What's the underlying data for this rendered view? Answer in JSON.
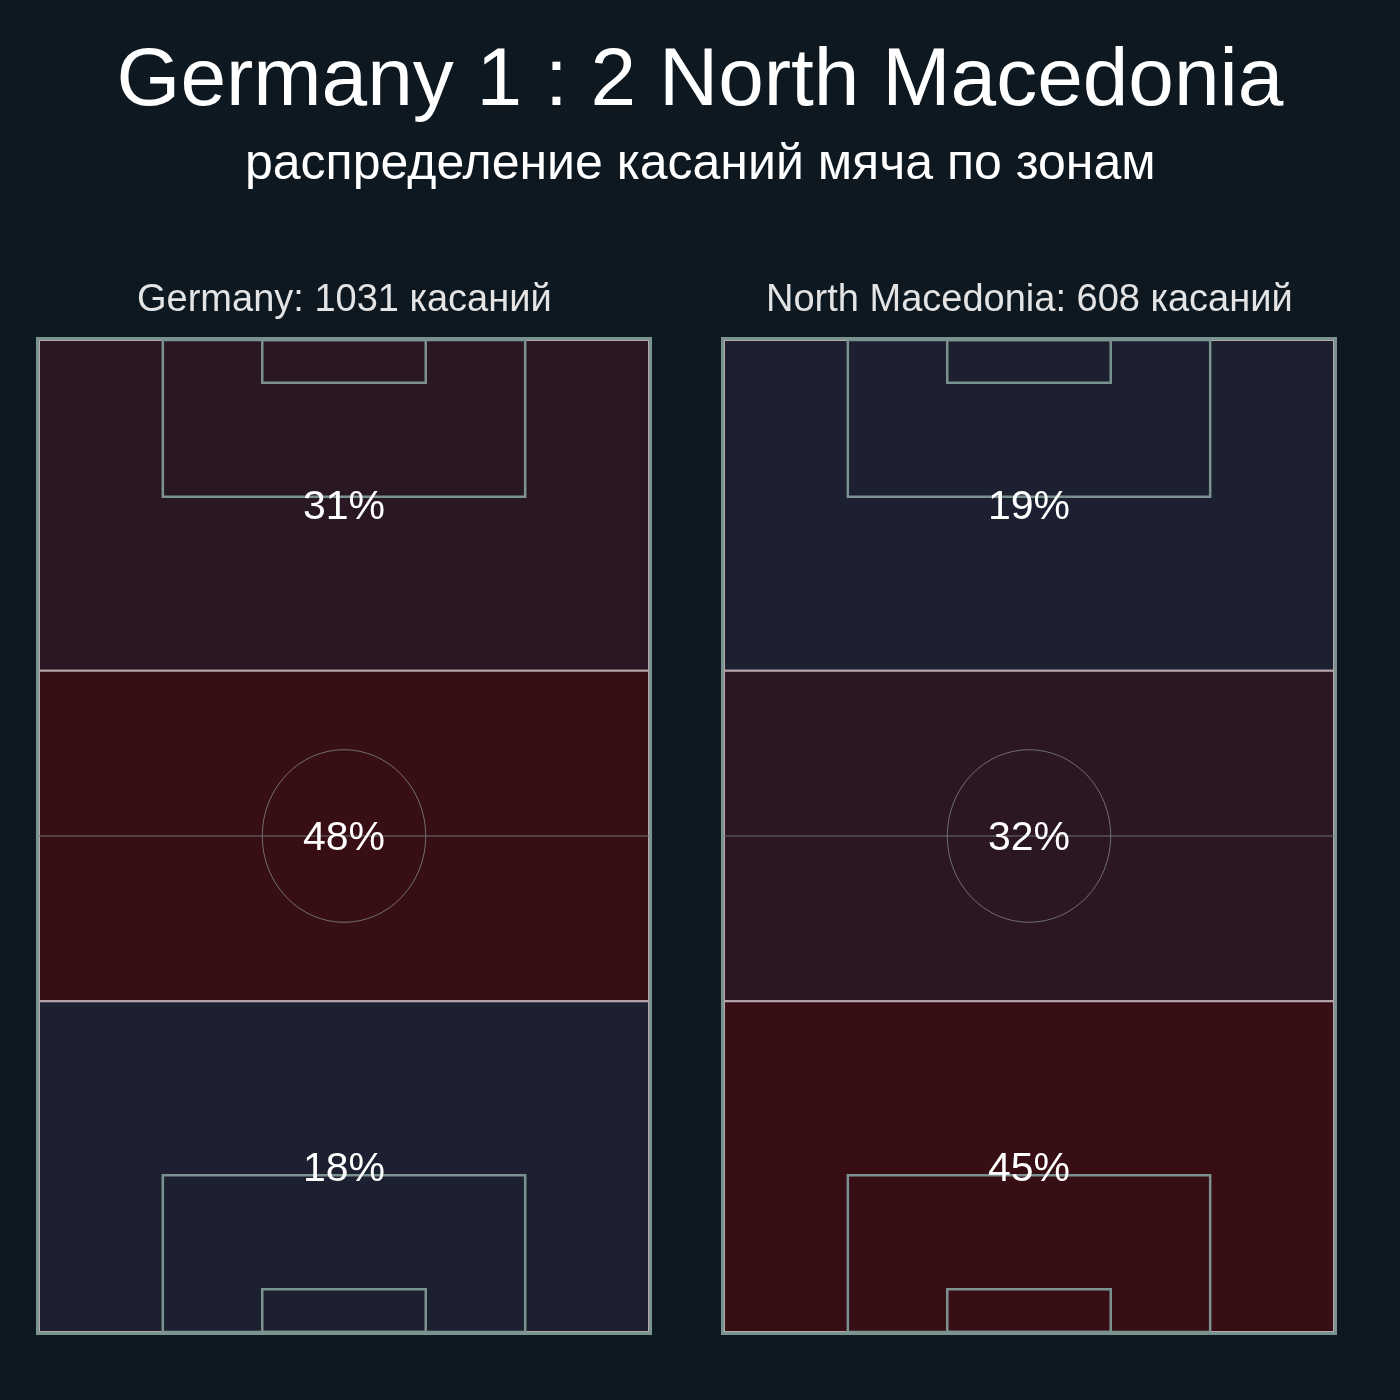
{
  "chart_data": [
    {
      "type": "other",
      "title": "Germany 1 : 2 North Macedonia",
      "subtitle": "распределение касаний мяча по зонам",
      "xlabel": "Germany: 1031 касаний",
      "categories": [
        null,
        null,
        null
      ],
      "values": [
        31,
        48,
        18
      ],
      "value_labels": [
        "31%",
        "48%",
        "18%"
      ]
    },
    {
      "type": "other",
      "xlabel": "North Macedonia: 608 касаний",
      "categories": [
        null,
        null,
        null
      ],
      "values": [
        19,
        32,
        45
      ],
      "value_labels": [
        "19%",
        "32%",
        "45%"
      ]
    }
  ]
}
